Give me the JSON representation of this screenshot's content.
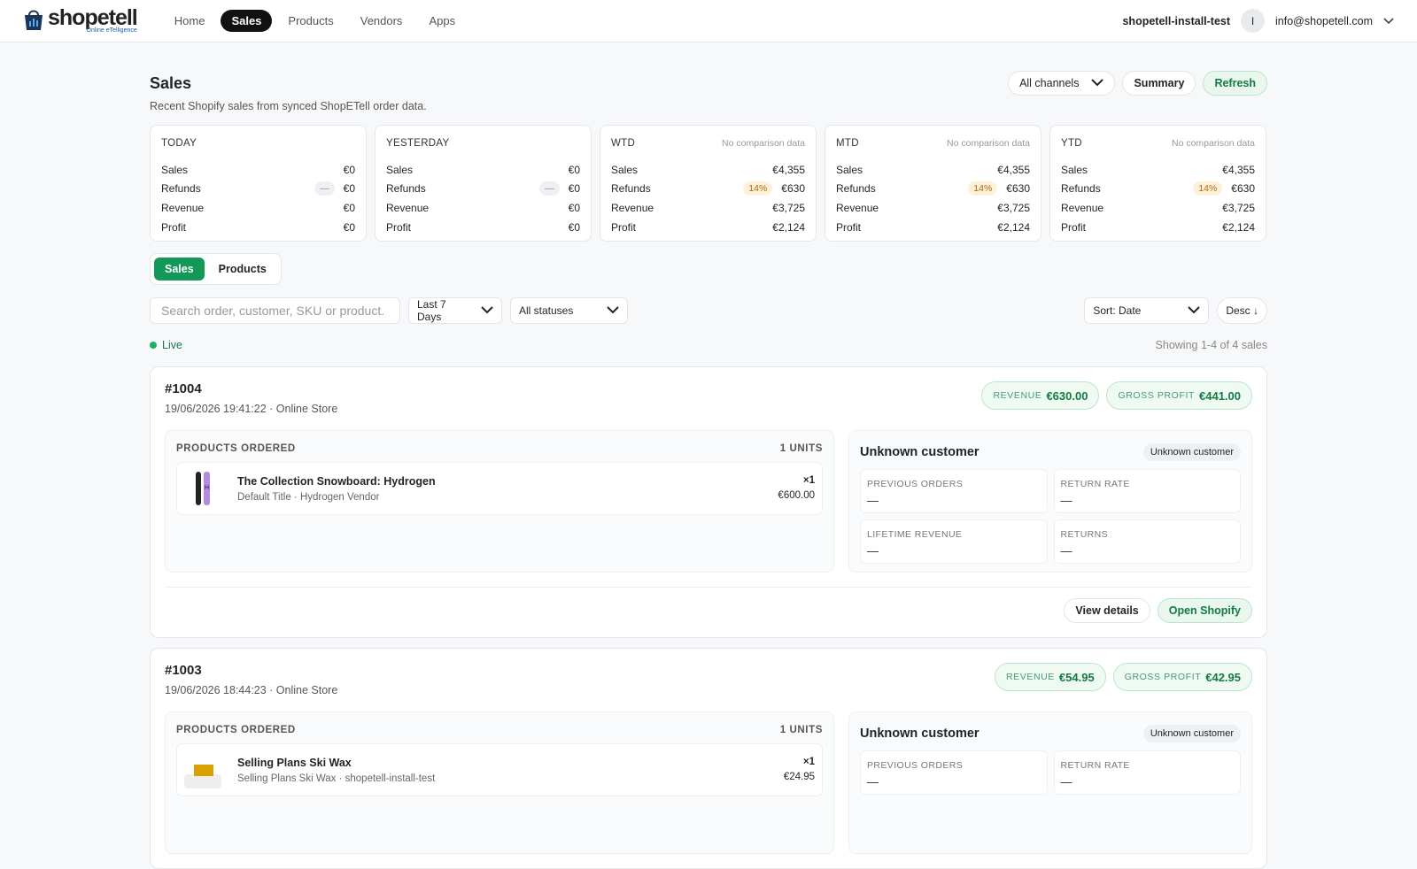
{
  "nav": {
    "logo": "shopetell",
    "logo_tagline": "Online eTelligence",
    "links": [
      "Home",
      "Sales",
      "Products",
      "Vendors",
      "Apps"
    ],
    "active_link": 1,
    "store": "shopetell-install-test",
    "avatar": "I",
    "email": "info@shopetell.com"
  },
  "header": {
    "title": "Sales",
    "subtitle": "Recent Shopify sales from synced ShopETell order data.",
    "channel": "All channels",
    "buttons": [
      "Summary",
      "Refresh"
    ]
  },
  "kpis": [
    {
      "period": "TODAY",
      "rows": [
        {
          "label": "Sales",
          "value": "€0"
        },
        {
          "label": "Refunds",
          "badge": "—",
          "value": "€0"
        },
        {
          "label": "Revenue",
          "value": "€0"
        },
        {
          "label": "Profit",
          "value": "€0"
        }
      ]
    },
    {
      "period": "YESTERDAY",
      "rows": [
        {
          "label": "Sales",
          "value": "€0"
        },
        {
          "label": "Refunds",
          "badge": "—",
          "value": "€0"
        },
        {
          "label": "Revenue",
          "value": "€0"
        },
        {
          "label": "Profit",
          "value": "€0"
        }
      ]
    },
    {
      "period": "WTD",
      "note": "No comparison data",
      "rows": [
        {
          "label": "Sales",
          "value": "€4,355"
        },
        {
          "label": "Refunds",
          "badge": "14%",
          "value": "€630"
        },
        {
          "label": "Revenue",
          "value": "€3,725"
        },
        {
          "label": "Profit",
          "value": "€2,124"
        }
      ]
    },
    {
      "period": "MTD",
      "note": "No comparison data",
      "rows": [
        {
          "label": "Sales",
          "value": "€4,355"
        },
        {
          "label": "Refunds",
          "badge": "14%",
          "value": "€630"
        },
        {
          "label": "Revenue",
          "value": "€3,725"
        },
        {
          "label": "Profit",
          "value": "€2,124"
        }
      ]
    },
    {
      "period": "YTD",
      "note": "No comparison data",
      "rows": [
        {
          "label": "Sales",
          "value": "€4,355"
        },
        {
          "label": "Refunds",
          "badge": "14%",
          "value": "€630"
        },
        {
          "label": "Revenue",
          "value": "€3,725"
        },
        {
          "label": "Profit",
          "value": "€2,124"
        }
      ]
    }
  ],
  "tabs": [
    "Sales",
    "Products"
  ],
  "active_tab": 0,
  "filters": {
    "search_placeholder": "Search order, customer, SKU or product.",
    "range": "Last 7 Days",
    "status": "All statuses",
    "sort": "Sort: Date",
    "order": "Desc ↓"
  },
  "status": {
    "live": "Live",
    "showing": "Showing 1-4 of 4 sales"
  },
  "orders": [
    {
      "id": "#1004",
      "meta": "19/06/2026 19:41:22 · Online Store",
      "revenue_label": "REVENUE",
      "revenue": "€630.00",
      "profit_label": "GROSS PROFIT",
      "profit": "€441.00",
      "products_heading": "PRODUCTS ORDERED",
      "units": "1 UNITS",
      "items": [
        {
          "name": "The Collection Snowboard: Hydrogen",
          "detail": "Default Title · Hydrogen Vendor",
          "qty": "×1",
          "price": "€600.00"
        }
      ],
      "customer": {
        "name": "Unknown customer",
        "tag": "Unknown customer",
        "stats": [
          {
            "label": "PREVIOUS ORDERS",
            "value": "—"
          },
          {
            "label": "RETURN RATE",
            "value": "—"
          },
          {
            "label": "LIFETIME REVENUE",
            "value": "—"
          },
          {
            "label": "RETURNS",
            "value": "—"
          }
        ]
      },
      "actions": [
        "View details",
        "Open Shopify"
      ]
    },
    {
      "id": "#1003",
      "meta": "19/06/2026 18:44:23 · Online Store",
      "revenue_label": "REVENUE",
      "revenue": "€54.95",
      "profit_label": "GROSS PROFIT",
      "profit": "€42.95",
      "products_heading": "PRODUCTS ORDERED",
      "units": "1 UNITS",
      "items": [
        {
          "name": "Selling Plans Ski Wax",
          "detail": "Selling Plans Ski Wax · shopetell-install-test",
          "qty": "×1",
          "price": "€24.95"
        }
      ],
      "customer": {
        "name": "Unknown customer",
        "tag": "Unknown customer",
        "stats": [
          {
            "label": "PREVIOUS ORDERS",
            "value": "—"
          },
          {
            "label": "RETURN RATE",
            "value": "—"
          }
        ]
      }
    }
  ]
}
